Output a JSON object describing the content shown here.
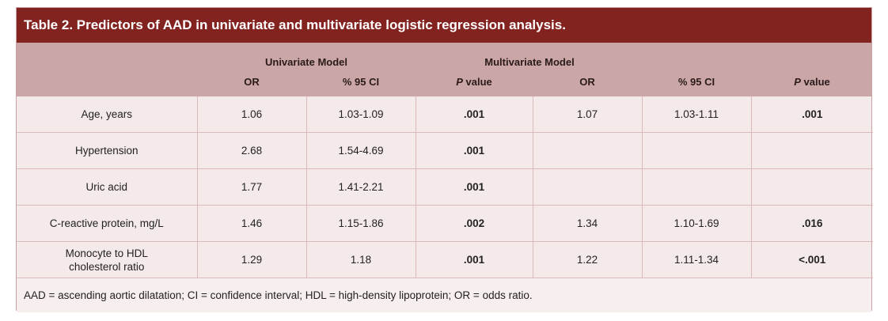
{
  "title": "Table 2. Predictors of AAD in univariate and multivariate logistic regression analysis.",
  "header": {
    "groups": [
      "Univariate Model",
      "Multivariate Model"
    ],
    "columns": [
      "OR",
      "% 95 CI",
      "P value",
      "OR",
      "% 95 CI",
      "P value"
    ]
  },
  "rows": [
    {
      "label": "Age, years",
      "uni_or": "1.06",
      "uni_ci": "1.03-1.09",
      "uni_p": ".001",
      "multi_or": "1.07",
      "multi_ci": "1.03-1.11",
      "multi_p": ".001"
    },
    {
      "label": "Hypertension",
      "uni_or": "2.68",
      "uni_ci": "1.54-4.69",
      "uni_p": ".001",
      "multi_or": "",
      "multi_ci": "",
      "multi_p": ""
    },
    {
      "label": "Uric acid",
      "uni_or": "1.77",
      "uni_ci": "1.41-2.21",
      "uni_p": ".001",
      "multi_or": "",
      "multi_ci": "",
      "multi_p": ""
    },
    {
      "label": "C-reactive protein, mg/L",
      "uni_or": "1.46",
      "uni_ci": "1.15-1.86",
      "uni_p": ".002",
      "multi_or": "1.34",
      "multi_ci": "1.10-1.69",
      "multi_p": ".016"
    },
    {
      "label": "Monocyte to HDL cholesterol ratio",
      "uni_or": "1.29",
      "uni_ci": "1.18",
      "uni_p": ".001",
      "multi_or": "1.22",
      "multi_ci": "1.11-1.34",
      "multi_p": "<.001"
    }
  ],
  "footnote": "AAD = ascending aortic dilatation; CI = confidence interval; HDL = high-density lipoprotein; OR = odds ratio.",
  "colors": {
    "title_bg": "#83231f",
    "header_bg": "#cba6a6",
    "row_bg": "#f5eaea"
  }
}
